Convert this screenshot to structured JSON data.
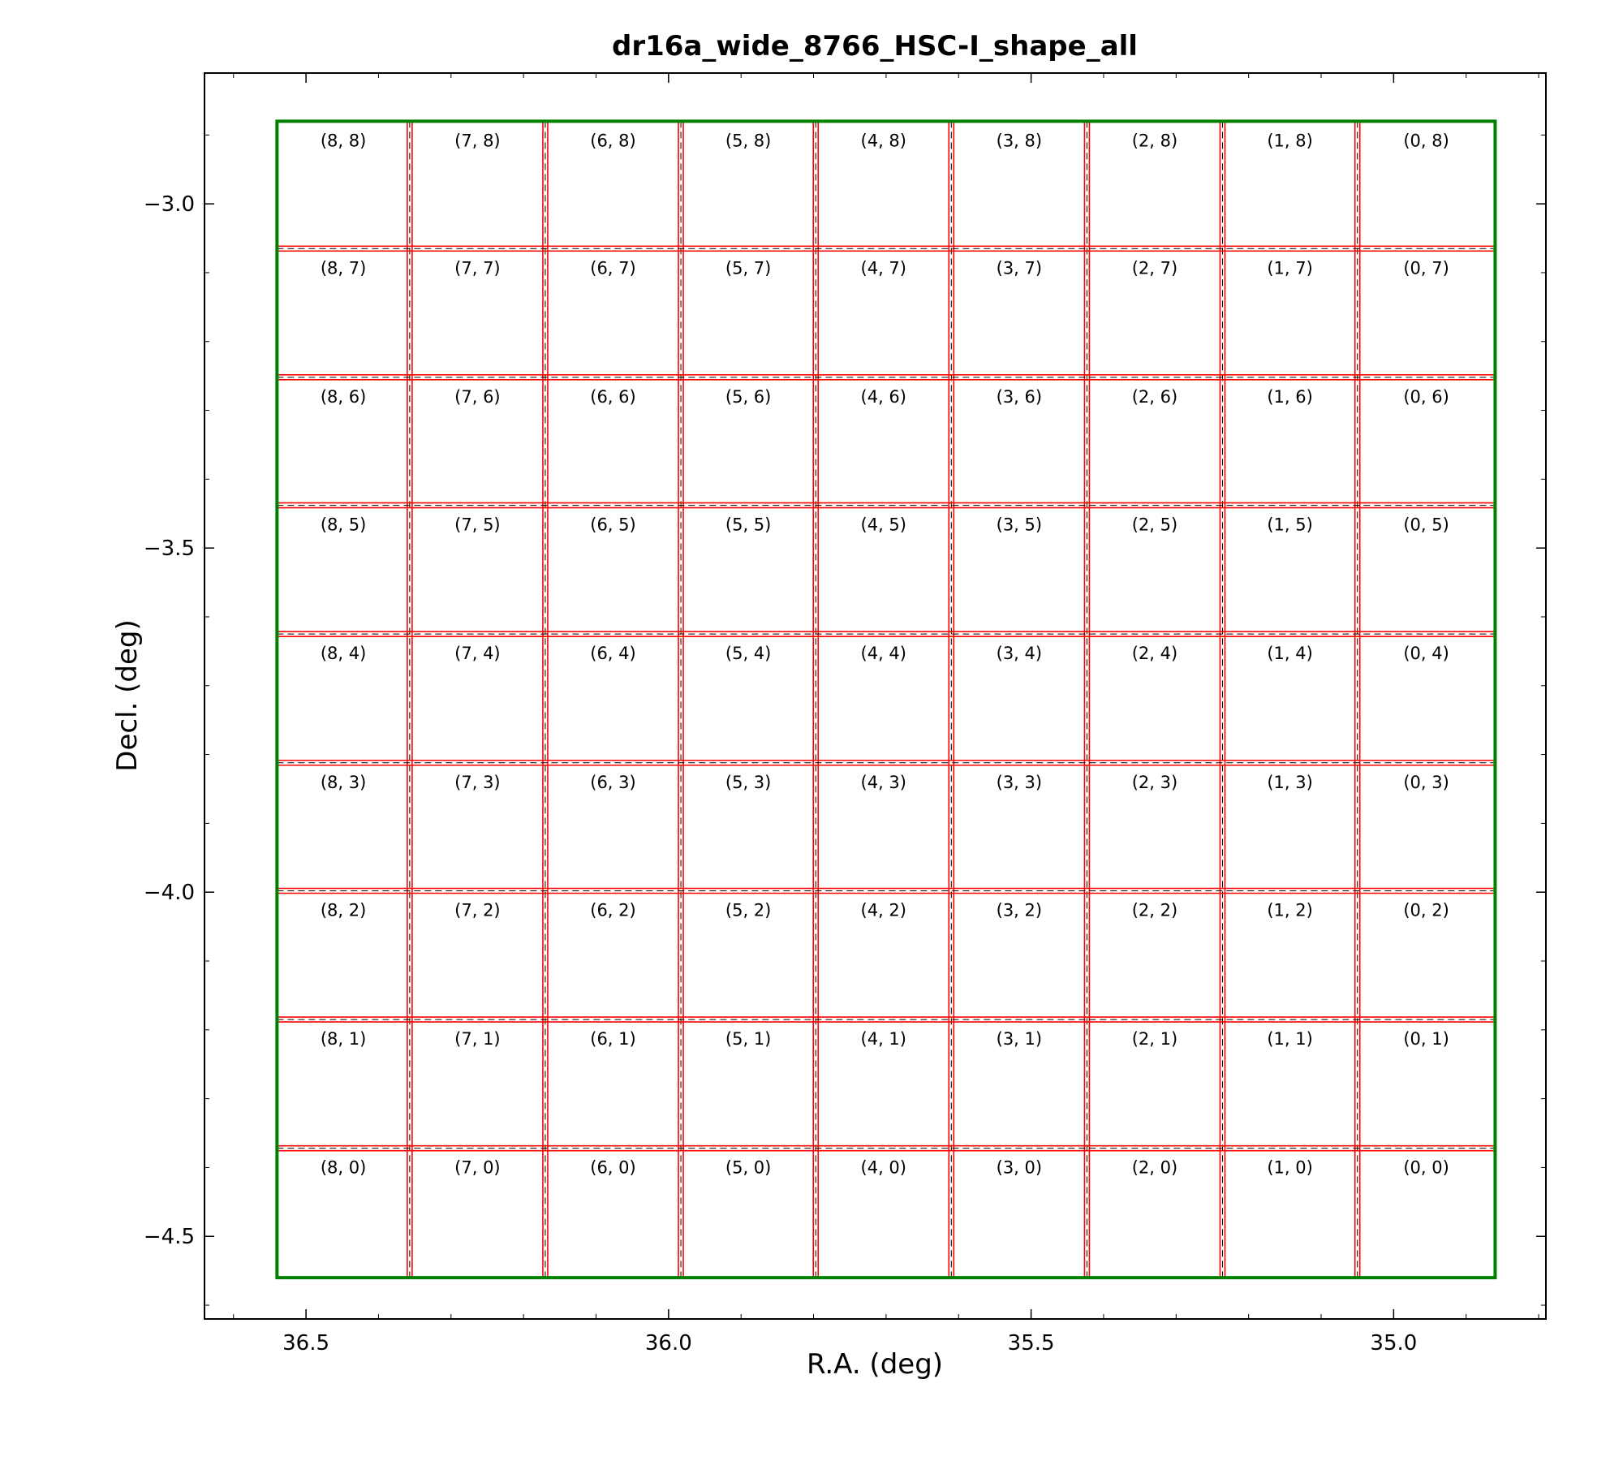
{
  "chart_data": {
    "type": "scatter",
    "title": "dr16a_wide_8766_HSC-I_shape_all",
    "xlabel": "R.A.  (deg)",
    "ylabel": "Decl. (deg)",
    "xlim": [
      36.64,
      34.79
    ],
    "ylim": [
      -4.62,
      -2.81
    ],
    "x_ticks": [
      {
        "value": 35.0,
        "label": "35.0"
      },
      {
        "value": 35.5,
        "label": "35.5"
      },
      {
        "value": 36.0,
        "label": "36.0"
      },
      {
        "value": 36.5,
        "label": "36.5"
      }
    ],
    "y_ticks": [
      {
        "value": -3.0,
        "label": "−3.0"
      },
      {
        "value": -3.5,
        "label": "−3.5"
      },
      {
        "value": -4.0,
        "label": "−4.0"
      },
      {
        "value": -4.5,
        "label": "−4.5"
      }
    ],
    "x_minor_step": 0.1,
    "y_minor_step": 0.1,
    "tract_boundary": {
      "color": "#008000",
      "corners": [
        [
          34.86,
          -2.88
        ],
        [
          36.54,
          -2.88
        ],
        [
          36.54,
          -4.56
        ],
        [
          34.86,
          -4.56
        ]
      ]
    },
    "patch_grid": {
      "color": "#ff0000",
      "dashed_color": "#000000",
      "ra_boundaries": [
        35.05,
        35.236,
        35.423,
        35.61,
        35.797,
        35.983,
        36.17,
        36.357
      ],
      "dec_boundaries": [
        -3.065,
        -3.252,
        -3.438,
        -3.625,
        -3.812,
        -3.998,
        -4.185,
        -4.372
      ]
    },
    "patch_labels": [
      [
        "(8, 8)",
        "(7, 8)",
        "(6, 8)",
        "(5, 8)",
        "(4, 8)",
        "(3, 8)",
        "(2, 8)",
        "(1, 8)",
        "(0, 8)"
      ],
      [
        "(8, 7)",
        "(7, 7)",
        "(6, 7)",
        "(5, 7)",
        "(4, 7)",
        "(3, 7)",
        "(2, 7)",
        "(1, 7)",
        "(0, 7)"
      ],
      [
        "(8, 6)",
        "(7, 6)",
        "(6, 6)",
        "(5, 6)",
        "(4, 6)",
        "(3, 6)",
        "(2, 6)",
        "(1, 6)",
        "(0, 6)"
      ],
      [
        "(8, 5)",
        "(7, 5)",
        "(6, 5)",
        "(5, 5)",
        "(4, 5)",
        "(3, 5)",
        "(2, 5)",
        "(1, 5)",
        "(0, 5)"
      ],
      [
        "(8, 4)",
        "(7, 4)",
        "(6, 4)",
        "(5, 4)",
        "(4, 4)",
        "(3, 4)",
        "(2, 4)",
        "(1, 4)",
        "(0, 4)"
      ],
      [
        "(8, 3)",
        "(7, 3)",
        "(6, 3)",
        "(5, 3)",
        "(4, 3)",
        "(3, 3)",
        "(2, 3)",
        "(1, 3)",
        "(0, 3)"
      ],
      [
        "(8, 2)",
        "(7, 2)",
        "(6, 2)",
        "(5, 2)",
        "(4, 2)",
        "(3, 2)",
        "(2, 2)",
        "(1, 2)",
        "(0, 2)"
      ],
      [
        "(8, 1)",
        "(7, 1)",
        "(6, 1)",
        "(5, 1)",
        "(4, 1)",
        "(3, 1)",
        "(2, 1)",
        "(1, 1)",
        "(0, 1)"
      ],
      [
        "(8, 0)",
        "(7, 0)",
        "(6, 0)",
        "(5, 0)",
        "(4, 0)",
        "(3, 0)",
        "(2, 0)",
        "(1, 0)",
        "(0, 0)"
      ]
    ],
    "grid": false,
    "legend": "none"
  }
}
